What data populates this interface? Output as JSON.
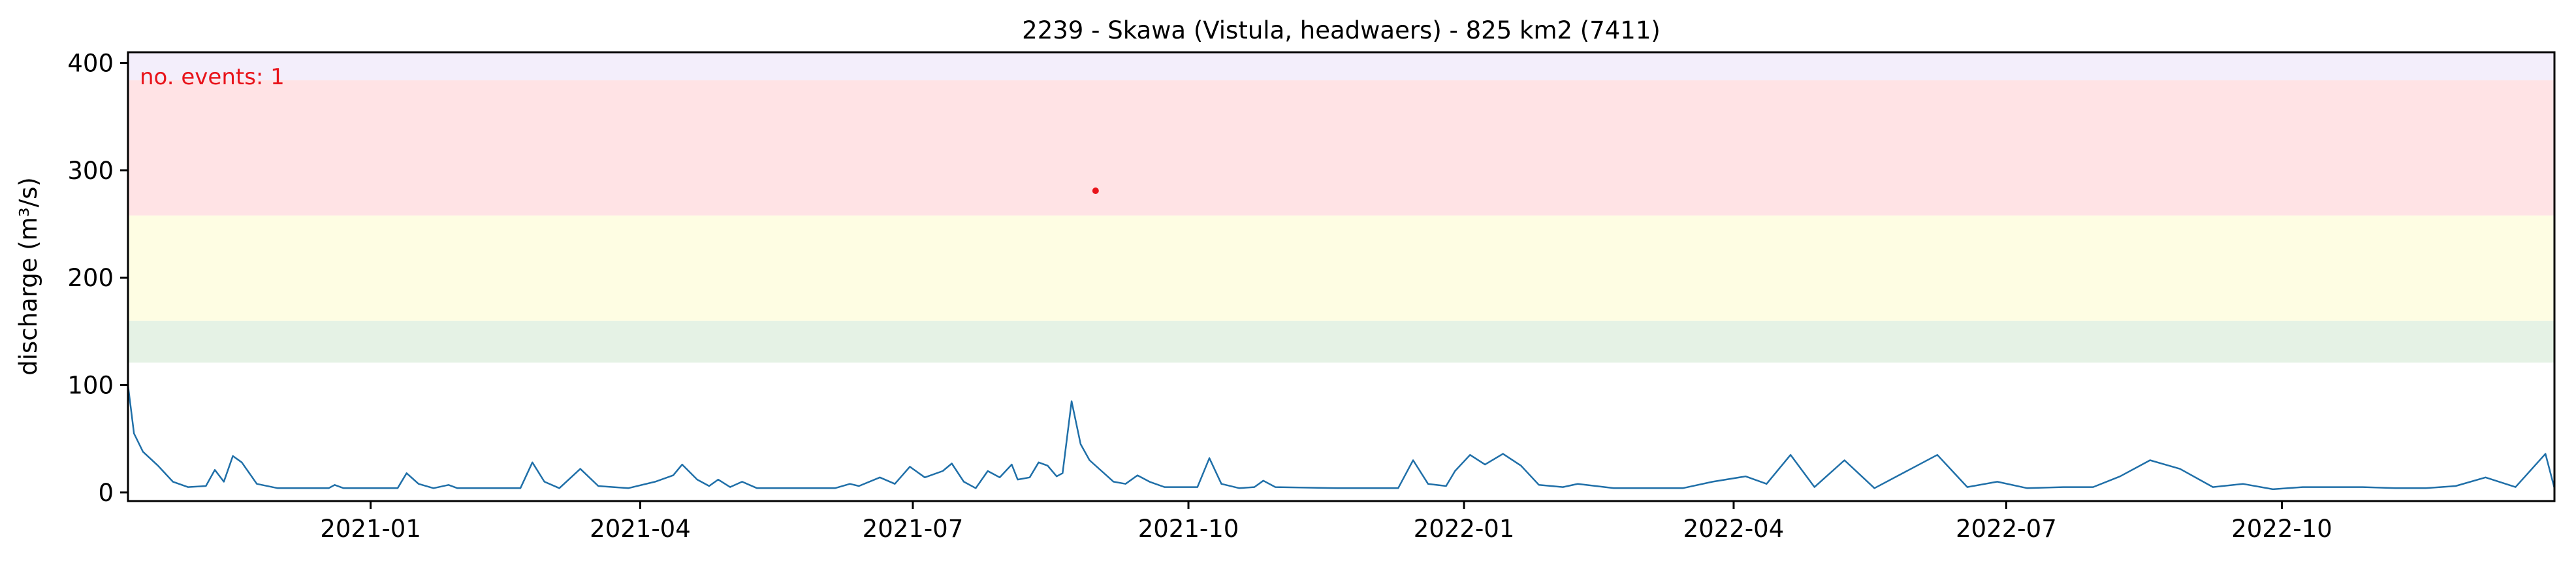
{
  "chart_data": {
    "type": "line",
    "title": "2239 - Skawa (Vistula, headwaers) - 825 km2 (7411)",
    "xlabel": "",
    "ylabel": "discharge (m³/s)",
    "x_range": [
      "2020-10-12",
      "2022-12-31"
    ],
    "ylim": [
      -8,
      410
    ],
    "yticks": [
      0,
      100,
      200,
      300,
      400
    ],
    "xticks": [
      {
        "date": "2021-01-01",
        "label": "2021-01"
      },
      {
        "date": "2021-04-01",
        "label": "2021-04"
      },
      {
        "date": "2021-07-01",
        "label": "2021-07"
      },
      {
        "date": "2021-10-01",
        "label": "2021-10"
      },
      {
        "date": "2022-01-01",
        "label": "2022-01"
      },
      {
        "date": "2022-04-01",
        "label": "2022-04"
      },
      {
        "date": "2022-07-01",
        "label": "2022-07"
      },
      {
        "date": "2022-10-01",
        "label": "2022-10"
      }
    ],
    "threshold_bands": [
      {
        "from": 121,
        "to": 160,
        "color": "#e5f2e5"
      },
      {
        "from": 160,
        "to": 258,
        "color": "#fefde3"
      },
      {
        "from": 258,
        "to": 384,
        "color": "#ffe3e5"
      },
      {
        "from": 384,
        "to": 410,
        "color": "#f3eefb"
      }
    ],
    "annotation": {
      "text": "no. events: 1",
      "color": "#e8141b"
    },
    "event_markers": [
      {
        "date": "2021-08-31",
        "value": 281,
        "color": "#e8141b"
      }
    ],
    "series": [
      {
        "color": "#1f6fa8",
        "points": [
          [
            "2020-10-12",
            100
          ],
          [
            "2020-10-14",
            55
          ],
          [
            "2020-10-17",
            38
          ],
          [
            "2020-10-22",
            25
          ],
          [
            "2020-10-27",
            10
          ],
          [
            "2020-11-01",
            5
          ],
          [
            "2020-11-07",
            6
          ],
          [
            "2020-11-10",
            21
          ],
          [
            "2020-11-13",
            10
          ],
          [
            "2020-11-16",
            34
          ],
          [
            "2020-11-19",
            28
          ],
          [
            "2020-11-24",
            8
          ],
          [
            "2020-12-01",
            4
          ],
          [
            "2020-12-18",
            4
          ],
          [
            "2020-12-20",
            7
          ],
          [
            "2020-12-23",
            4
          ],
          [
            "2021-01-10",
            4
          ],
          [
            "2021-01-13",
            18
          ],
          [
            "2021-01-17",
            8
          ],
          [
            "2021-01-22",
            4
          ],
          [
            "2021-01-27",
            7
          ],
          [
            "2021-01-30",
            4
          ],
          [
            "2021-02-20",
            4
          ],
          [
            "2021-02-24",
            28
          ],
          [
            "2021-02-28",
            10
          ],
          [
            "2021-03-05",
            4
          ],
          [
            "2021-03-12",
            22
          ],
          [
            "2021-03-18",
            6
          ],
          [
            "2021-03-28",
            4
          ],
          [
            "2021-04-06",
            10
          ],
          [
            "2021-04-12",
            16
          ],
          [
            "2021-04-15",
            26
          ],
          [
            "2021-04-20",
            12
          ],
          [
            "2021-04-24",
            6
          ],
          [
            "2021-04-27",
            12
          ],
          [
            "2021-05-01",
            5
          ],
          [
            "2021-05-05",
            10
          ],
          [
            "2021-05-10",
            4
          ],
          [
            "2021-06-05",
            4
          ],
          [
            "2021-06-10",
            8
          ],
          [
            "2021-06-13",
            6
          ],
          [
            "2021-06-20",
            14
          ],
          [
            "2021-06-25",
            8
          ],
          [
            "2021-06-30",
            24
          ],
          [
            "2021-07-05",
            14
          ],
          [
            "2021-07-11",
            20
          ],
          [
            "2021-07-14",
            27
          ],
          [
            "2021-07-18",
            10
          ],
          [
            "2021-07-22",
            4
          ],
          [
            "2021-07-26",
            20
          ],
          [
            "2021-07-30",
            14
          ],
          [
            "2021-08-03",
            26
          ],
          [
            "2021-08-05",
            12
          ],
          [
            "2021-08-09",
            14
          ],
          [
            "2021-08-12",
            28
          ],
          [
            "2021-08-15",
            25
          ],
          [
            "2021-08-18",
            15
          ],
          [
            "2021-08-20",
            18
          ],
          [
            "2021-08-23",
            85
          ],
          [
            "2021-08-26",
            45
          ],
          [
            "2021-08-29",
            30
          ],
          [
            "2021-09-02",
            20
          ],
          [
            "2021-09-06",
            10
          ],
          [
            "2021-09-10",
            8
          ],
          [
            "2021-09-14",
            16
          ],
          [
            "2021-09-18",
            10
          ],
          [
            "2021-09-23",
            5
          ],
          [
            "2021-09-28",
            5
          ],
          [
            "2021-10-04",
            5
          ],
          [
            "2021-10-08",
            32
          ],
          [
            "2021-10-12",
            8
          ],
          [
            "2021-10-18",
            4
          ],
          [
            "2021-10-23",
            5
          ],
          [
            "2021-10-26",
            11
          ],
          [
            "2021-10-30",
            5
          ],
          [
            "2021-11-20",
            4
          ],
          [
            "2021-12-10",
            4
          ],
          [
            "2021-12-15",
            30
          ],
          [
            "2021-12-20",
            8
          ],
          [
            "2021-12-26",
            6
          ],
          [
            "2021-12-29",
            20
          ],
          [
            "2022-01-03",
            35
          ],
          [
            "2022-01-08",
            26
          ],
          [
            "2022-01-14",
            36
          ],
          [
            "2022-01-20",
            25
          ],
          [
            "2022-01-26",
            7
          ],
          [
            "2022-02-03",
            5
          ],
          [
            "2022-02-08",
            8
          ],
          [
            "2022-02-14",
            6
          ],
          [
            "2022-02-20",
            4
          ],
          [
            "2022-02-28",
            4
          ],
          [
            "2022-03-15",
            4
          ],
          [
            "2022-03-25",
            10
          ],
          [
            "2022-04-05",
            15
          ],
          [
            "2022-04-12",
            8
          ],
          [
            "2022-04-20",
            35
          ],
          [
            "2022-04-28",
            5
          ],
          [
            "2022-05-08",
            30
          ],
          [
            "2022-05-18",
            4
          ],
          [
            "2022-06-08",
            35
          ],
          [
            "2022-06-18",
            5
          ],
          [
            "2022-06-28",
            10
          ],
          [
            "2022-07-08",
            4
          ],
          [
            "2022-07-20",
            5
          ],
          [
            "2022-07-30",
            5
          ],
          [
            "2022-08-08",
            15
          ],
          [
            "2022-08-18",
            30
          ],
          [
            "2022-08-28",
            22
          ],
          [
            "2022-09-08",
            5
          ],
          [
            "2022-09-18",
            8
          ],
          [
            "2022-09-28",
            3
          ],
          [
            "2022-10-08",
            5
          ],
          [
            "2022-10-18",
            5
          ],
          [
            "2022-10-28",
            5
          ],
          [
            "2022-11-08",
            4
          ],
          [
            "2022-11-18",
            4
          ],
          [
            "2022-11-28",
            6
          ],
          [
            "2022-12-08",
            14
          ],
          [
            "2022-12-18",
            5
          ],
          [
            "2022-12-28",
            36
          ],
          [
            "2022-12-31",
            4
          ]
        ]
      }
    ]
  }
}
